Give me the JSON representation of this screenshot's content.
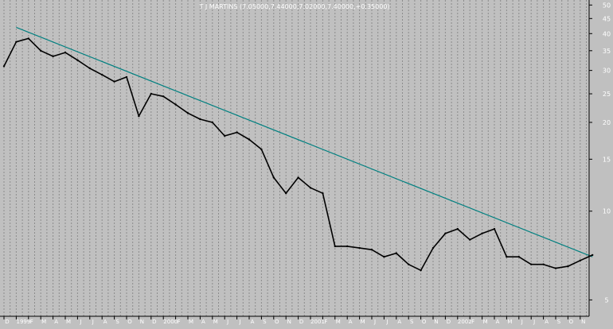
{
  "chart_data": {
    "type": "line",
    "title": "T J MARTINS (7.05000,7.44000,7.02000,7.40000,+0.35000)",
    "y_scale": "log",
    "ylim": [
      4.4,
      52
    ],
    "y_ticks": [
      5,
      10,
      15,
      20,
      25,
      30,
      35,
      40,
      45,
      50
    ],
    "grid": true,
    "legend": "none",
    "x_labels": [
      "D",
      "1999",
      "F",
      "M",
      "A",
      "M",
      "J",
      "J",
      "A",
      "S",
      "O",
      "N",
      "D",
      "2000",
      "F",
      "M",
      "A",
      "M",
      "J",
      "J",
      "A",
      "S",
      "O",
      "N",
      "D",
      "2001",
      "F",
      "M",
      "A",
      "M",
      "J",
      "J",
      "A",
      "S",
      "O",
      "N",
      "D",
      "2002",
      "F",
      "M",
      "A",
      "M",
      "J",
      "J",
      "A",
      "S",
      "O",
      "N",
      "D"
    ],
    "x": [
      "1998-12",
      "1999-01",
      "1999-02",
      "1999-03",
      "1999-04",
      "1999-05",
      "1999-06",
      "1999-07",
      "1999-08",
      "1999-09",
      "1999-10",
      "1999-11",
      "1999-12",
      "2000-01",
      "2000-02",
      "2000-03",
      "2000-04",
      "2000-05",
      "2000-06",
      "2000-07",
      "2000-08",
      "2000-09",
      "2000-10",
      "2000-11",
      "2000-12",
      "2001-01",
      "2001-02",
      "2001-03",
      "2001-04",
      "2001-05",
      "2001-06",
      "2001-07",
      "2001-08",
      "2001-09",
      "2001-10",
      "2001-11",
      "2001-12",
      "2002-01",
      "2002-02",
      "2002-03",
      "2002-04",
      "2002-05",
      "2002-06",
      "2002-07",
      "2002-08",
      "2002-09",
      "2002-10",
      "2002-11",
      "2002-12"
    ],
    "series": [
      {
        "values": [
          31.0,
          37.5,
          38.5,
          35.0,
          33.5,
          34.5,
          32.5,
          30.5,
          29.0,
          27.5,
          28.5,
          21.0,
          25.0,
          24.5,
          23.0,
          21.5,
          20.5,
          20.0,
          18.0,
          18.5,
          17.5,
          16.2,
          13.0,
          11.5,
          13.0,
          12.0,
          11.5,
          7.6,
          7.6,
          7.5,
          7.4,
          7.0,
          7.2,
          6.6,
          6.3,
          7.5,
          8.4,
          8.7,
          8.0,
          8.4,
          8.7,
          7.0,
          7.0,
          6.6,
          6.6,
          6.4,
          6.5,
          6.8,
          7.1
        ],
        "color": "#000000"
      }
    ],
    "trendline": {
      "start": [
        "1999-01",
        42.0
      ],
      "end": [
        "2002-12",
        7.0
      ],
      "color": "#008080"
    }
  }
}
